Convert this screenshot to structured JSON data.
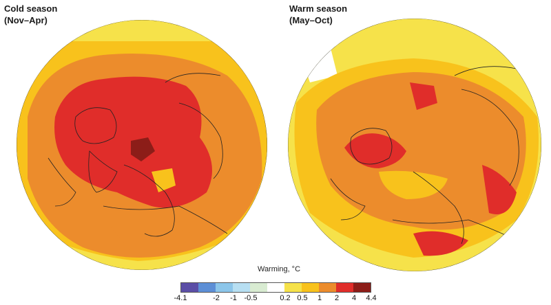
{
  "panels": [
    {
      "title_line1": "Cold season",
      "title_line2": "(Nov–Apr)"
    },
    {
      "title_line1": "Warm season",
      "title_line2": "(May–Oct)"
    }
  ],
  "legend": {
    "title": "Warming, °C",
    "ticks": [
      "-4.1",
      "-2",
      "-1",
      "-0.5",
      "0.2",
      "0.5",
      "1",
      "2",
      "4",
      "4.4"
    ],
    "colors": [
      "#5b4ea6",
      "#5d8fd6",
      "#8cc6ea",
      "#b7dff2",
      "#d9ecd2",
      "#ffffff",
      "#f6e24a",
      "#f8c21c",
      "#ec8c2c",
      "#e02d2a",
      "#8c1d18"
    ]
  }
}
